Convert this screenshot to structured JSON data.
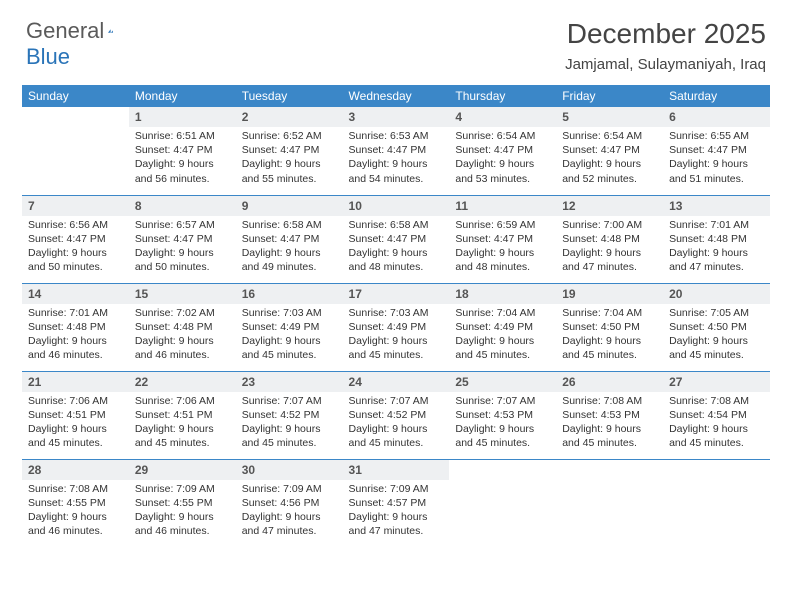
{
  "brand": {
    "part1": "General",
    "part2": "Blue"
  },
  "title": "December 2025",
  "location": "Jamjamal, Sulaymaniyah, Iraq",
  "colors": {
    "header_bg": "#3b87c8",
    "header_text": "#ffffff",
    "daynum_bg": "#eef0f2",
    "text": "#333333",
    "rule": "#3b87c8",
    "page_bg": "#ffffff"
  },
  "typography": {
    "title_fontsize": 28,
    "location_fontsize": 15,
    "dayheader_fontsize": 12,
    "daynum_fontsize": 12,
    "body_fontsize": 10.5
  },
  "layout": {
    "columns": 7,
    "rows": 5,
    "start_weekday": "Sunday",
    "first_day_column_index": 1
  },
  "weekdays": [
    "Sunday",
    "Monday",
    "Tuesday",
    "Wednesday",
    "Thursday",
    "Friday",
    "Saturday"
  ],
  "days": [
    {
      "n": 1,
      "sunrise": "6:51 AM",
      "sunset": "4:47 PM",
      "dl": "9 hours and 56 minutes."
    },
    {
      "n": 2,
      "sunrise": "6:52 AM",
      "sunset": "4:47 PM",
      "dl": "9 hours and 55 minutes."
    },
    {
      "n": 3,
      "sunrise": "6:53 AM",
      "sunset": "4:47 PM",
      "dl": "9 hours and 54 minutes."
    },
    {
      "n": 4,
      "sunrise": "6:54 AM",
      "sunset": "4:47 PM",
      "dl": "9 hours and 53 minutes."
    },
    {
      "n": 5,
      "sunrise": "6:54 AM",
      "sunset": "4:47 PM",
      "dl": "9 hours and 52 minutes."
    },
    {
      "n": 6,
      "sunrise": "6:55 AM",
      "sunset": "4:47 PM",
      "dl": "9 hours and 51 minutes."
    },
    {
      "n": 7,
      "sunrise": "6:56 AM",
      "sunset": "4:47 PM",
      "dl": "9 hours and 50 minutes."
    },
    {
      "n": 8,
      "sunrise": "6:57 AM",
      "sunset": "4:47 PM",
      "dl": "9 hours and 50 minutes."
    },
    {
      "n": 9,
      "sunrise": "6:58 AM",
      "sunset": "4:47 PM",
      "dl": "9 hours and 49 minutes."
    },
    {
      "n": 10,
      "sunrise": "6:58 AM",
      "sunset": "4:47 PM",
      "dl": "9 hours and 48 minutes."
    },
    {
      "n": 11,
      "sunrise": "6:59 AM",
      "sunset": "4:47 PM",
      "dl": "9 hours and 48 minutes."
    },
    {
      "n": 12,
      "sunrise": "7:00 AM",
      "sunset": "4:48 PM",
      "dl": "9 hours and 47 minutes."
    },
    {
      "n": 13,
      "sunrise": "7:01 AM",
      "sunset": "4:48 PM",
      "dl": "9 hours and 47 minutes."
    },
    {
      "n": 14,
      "sunrise": "7:01 AM",
      "sunset": "4:48 PM",
      "dl": "9 hours and 46 minutes."
    },
    {
      "n": 15,
      "sunrise": "7:02 AM",
      "sunset": "4:48 PM",
      "dl": "9 hours and 46 minutes."
    },
    {
      "n": 16,
      "sunrise": "7:03 AM",
      "sunset": "4:49 PM",
      "dl": "9 hours and 45 minutes."
    },
    {
      "n": 17,
      "sunrise": "7:03 AM",
      "sunset": "4:49 PM",
      "dl": "9 hours and 45 minutes."
    },
    {
      "n": 18,
      "sunrise": "7:04 AM",
      "sunset": "4:49 PM",
      "dl": "9 hours and 45 minutes."
    },
    {
      "n": 19,
      "sunrise": "7:04 AM",
      "sunset": "4:50 PM",
      "dl": "9 hours and 45 minutes."
    },
    {
      "n": 20,
      "sunrise": "7:05 AM",
      "sunset": "4:50 PM",
      "dl": "9 hours and 45 minutes."
    },
    {
      "n": 21,
      "sunrise": "7:06 AM",
      "sunset": "4:51 PM",
      "dl": "9 hours and 45 minutes."
    },
    {
      "n": 22,
      "sunrise": "7:06 AM",
      "sunset": "4:51 PM",
      "dl": "9 hours and 45 minutes."
    },
    {
      "n": 23,
      "sunrise": "7:07 AM",
      "sunset": "4:52 PM",
      "dl": "9 hours and 45 minutes."
    },
    {
      "n": 24,
      "sunrise": "7:07 AM",
      "sunset": "4:52 PM",
      "dl": "9 hours and 45 minutes."
    },
    {
      "n": 25,
      "sunrise": "7:07 AM",
      "sunset": "4:53 PM",
      "dl": "9 hours and 45 minutes."
    },
    {
      "n": 26,
      "sunrise": "7:08 AM",
      "sunset": "4:53 PM",
      "dl": "9 hours and 45 minutes."
    },
    {
      "n": 27,
      "sunrise": "7:08 AM",
      "sunset": "4:54 PM",
      "dl": "9 hours and 45 minutes."
    },
    {
      "n": 28,
      "sunrise": "7:08 AM",
      "sunset": "4:55 PM",
      "dl": "9 hours and 46 minutes."
    },
    {
      "n": 29,
      "sunrise": "7:09 AM",
      "sunset": "4:55 PM",
      "dl": "9 hours and 46 minutes."
    },
    {
      "n": 30,
      "sunrise": "7:09 AM",
      "sunset": "4:56 PM",
      "dl": "9 hours and 47 minutes."
    },
    {
      "n": 31,
      "sunrise": "7:09 AM",
      "sunset": "4:57 PM",
      "dl": "9 hours and 47 minutes."
    }
  ],
  "labels": {
    "sunrise": "Sunrise:",
    "sunset": "Sunset:",
    "daylight": "Daylight:"
  }
}
